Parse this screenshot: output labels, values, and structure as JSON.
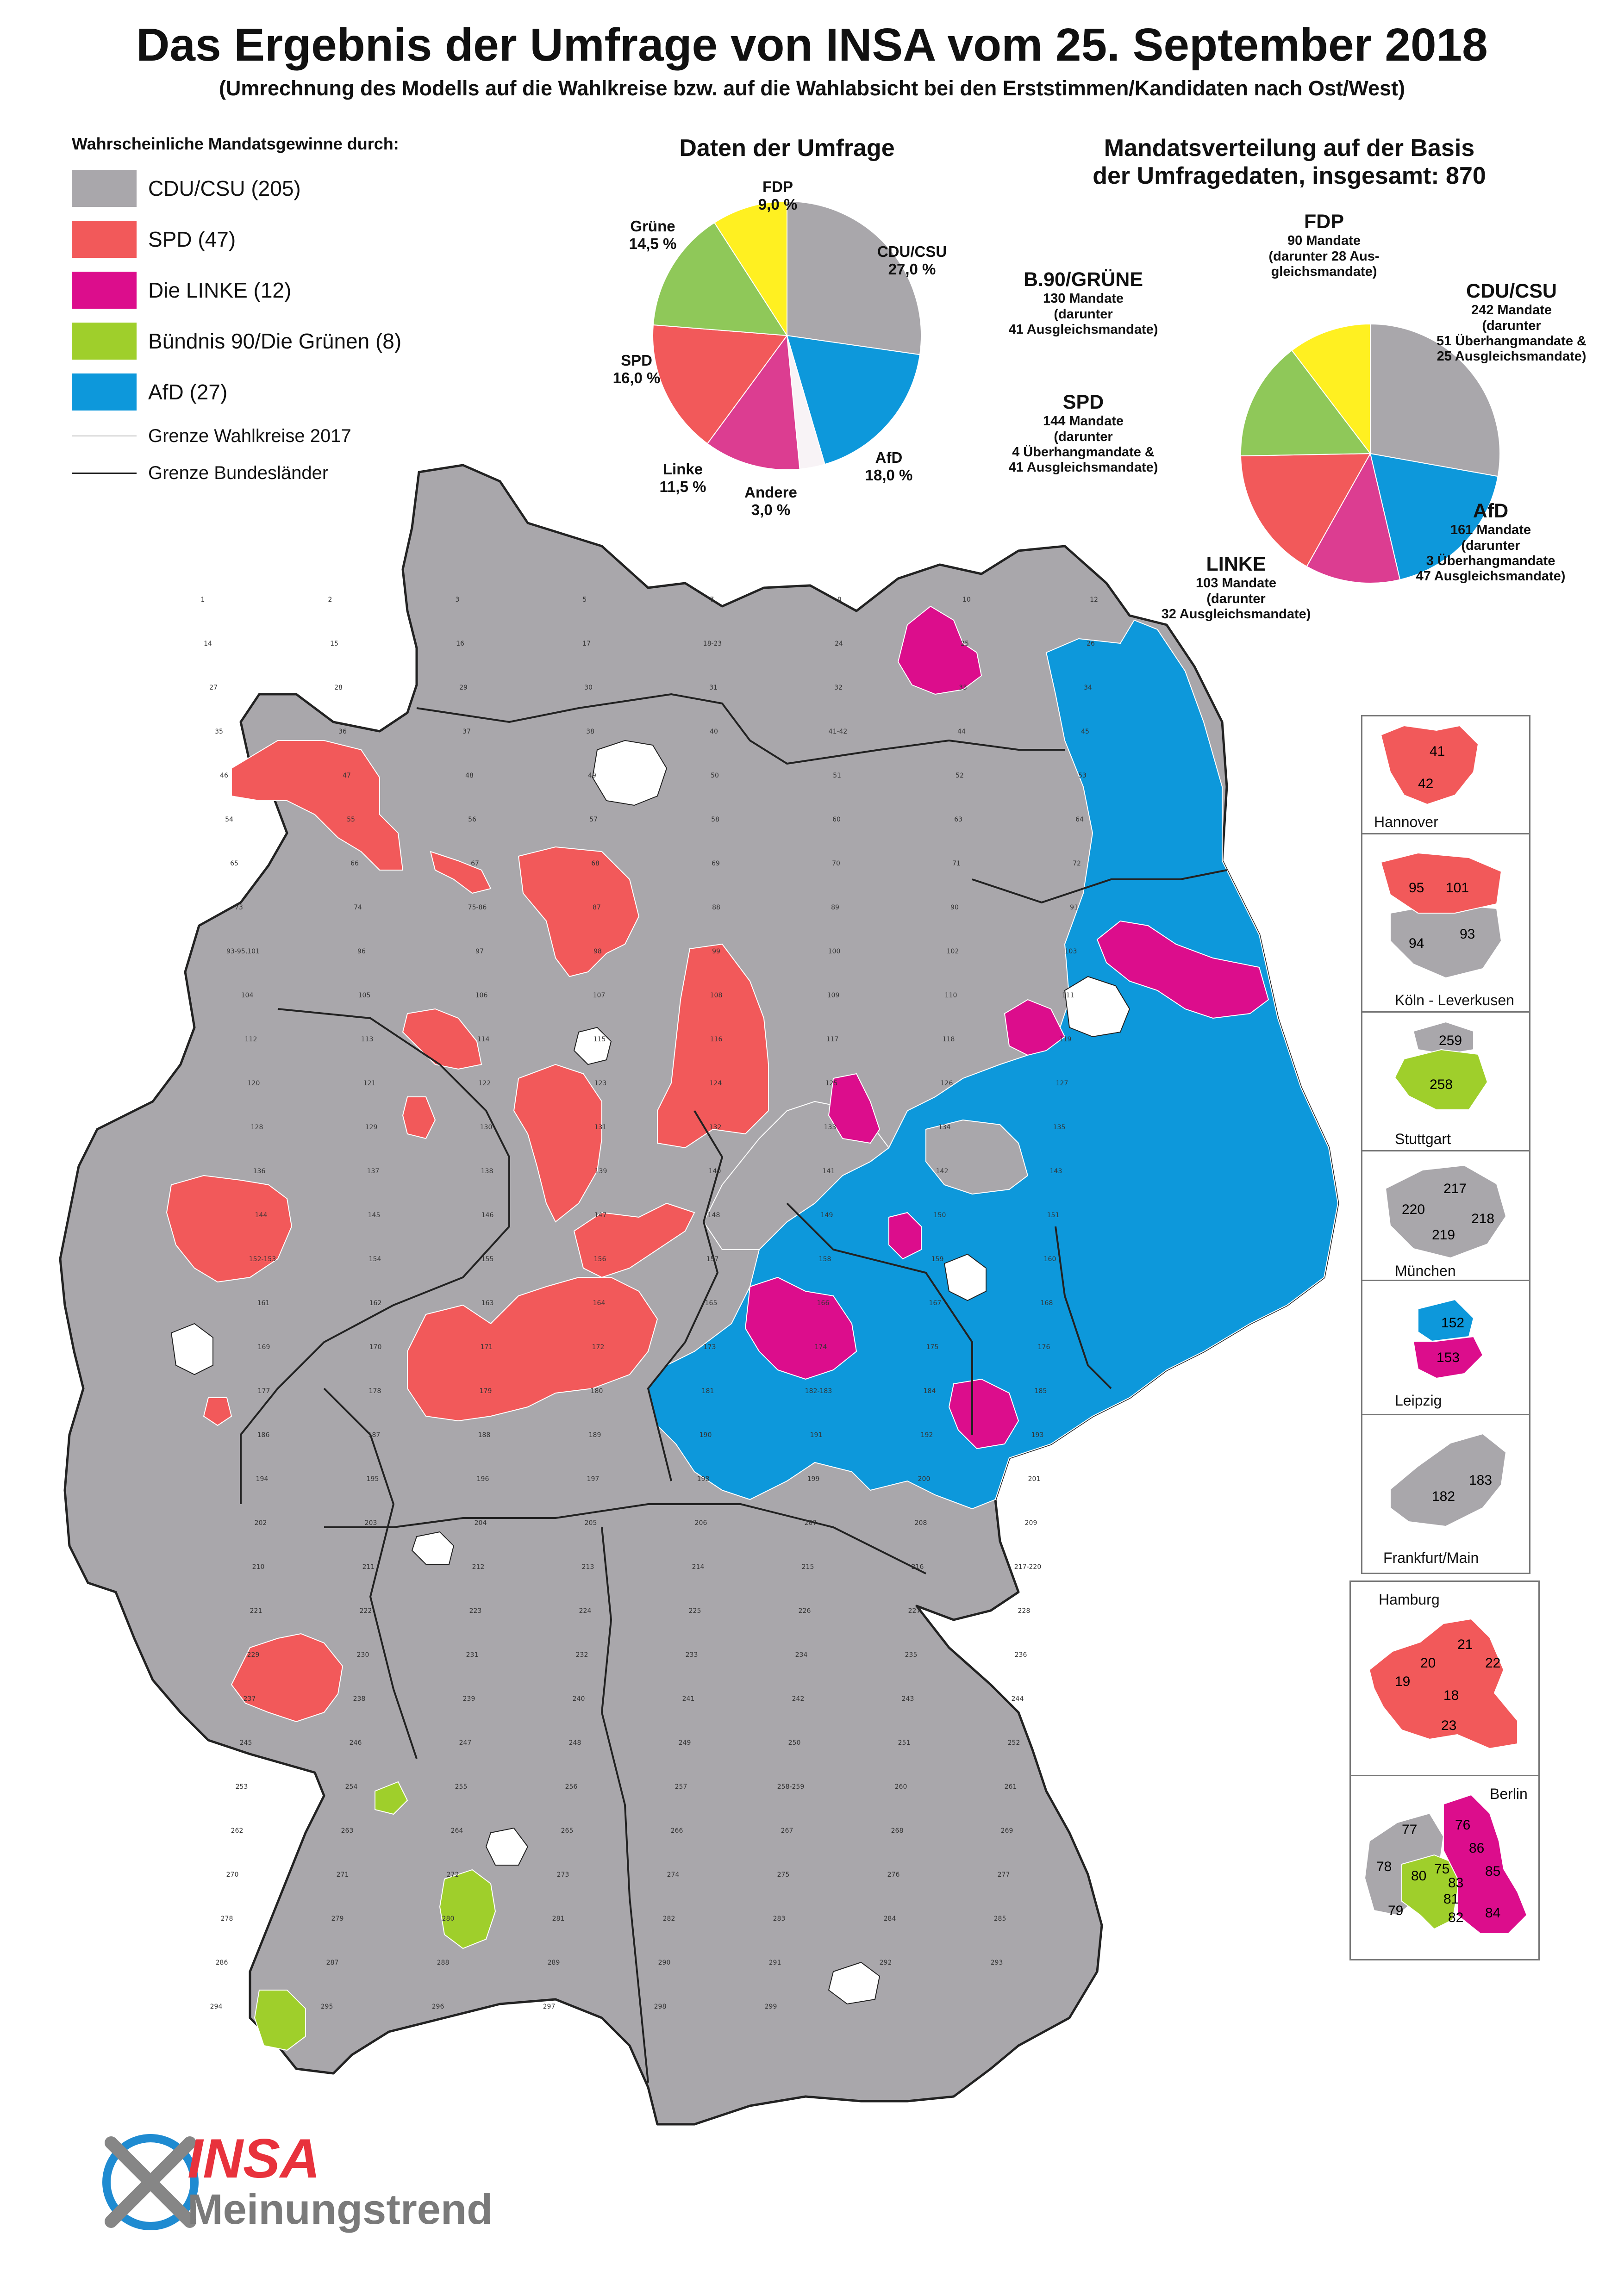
{
  "title": "Das Ergebnis der Umfrage von INSA vom 25. September 2018",
  "subtitle": "(Umrechnung des Modells auf die Wahlkreise bzw. auf die Wahlabsicht bei den Erststimmen/Kandidaten nach Ost/West)",
  "colors": {
    "cdu": "#a9a7ab",
    "spd": "#f2595a",
    "linke": "#dc0d8c",
    "gruene_legend": "#9fcf2b",
    "gruene_pie": "#8fc859",
    "afd": "#0d98db",
    "fdp": "#fff021",
    "andere": "#f8f3f6",
    "border": "#222222",
    "wk_border": "#ffffff"
  },
  "legend": {
    "heading": "Wahrscheinliche Mandatsgewinne durch:",
    "items": [
      "CDU/CSU (205)",
      "SPD (47)",
      "Die LINKE (12)",
      "Bündnis 90/Die Grünen (8)",
      "AfD (27)"
    ],
    "lines": [
      "Grenze Wahlkreise 2017",
      "Grenze Bundesländer"
    ]
  },
  "chart_data": [
    {
      "type": "pie",
      "title": "Daten der Umfrage",
      "slices": [
        {
          "name": "CDU/CSU",
          "value": 27.0,
          "label": "27,0 %"
        },
        {
          "name": "AfD",
          "value": 18.0,
          "label": "18,0 %"
        },
        {
          "name": "Andere",
          "value": 3.0,
          "label": "3,0 %"
        },
        {
          "name": "Linke",
          "value": 11.5,
          "label": "11,5 %"
        },
        {
          "name": "SPD",
          "value": 16.0,
          "label": "16,0 %"
        },
        {
          "name": "Grüne",
          "value": 14.5,
          "label": "14,5 %"
        },
        {
          "name": "FDP",
          "value": 9.0,
          "label": "9,0 %"
        }
      ]
    },
    {
      "type": "pie",
      "title": "Mandatsverteilung auf der Basis der Umfragedaten, insgesamt: 870",
      "title_lines": [
        "Mandatsverteilung auf der Basis",
        "der Umfragedaten, insgesamt: 870"
      ],
      "slices": [
        {
          "name": "CDU/CSU",
          "value": 242,
          "lines": [
            "242 Mandate",
            "(darunter",
            "51 Überhangmandate &",
            "25 Ausgleichsmandate)"
          ]
        },
        {
          "name": "AfD",
          "value": 161,
          "lines": [
            "161 Mandate",
            "(darunter",
            "3 Überhangmandate",
            "47 Ausgleichsmandate)"
          ]
        },
        {
          "name": "LINKE",
          "value": 103,
          "lines": [
            "103 Mandate",
            "(darunter",
            "32 Ausgleichsmandate)"
          ]
        },
        {
          "name": "SPD",
          "value": 144,
          "lines": [
            "144 Mandate",
            "(darunter",
            "4 Überhangmandate &",
            "41 Ausgleichsmandate)"
          ]
        },
        {
          "name": "B.90/GRÜNE",
          "value": 130,
          "lines": [
            "130 Mandate",
            "(darunter",
            "41 Ausgleichsmandate)"
          ]
        },
        {
          "name": "FDP",
          "value": 90,
          "lines": [
            "90 Mandate",
            "(darunter 28 Aus-",
            "gleichsmandate)"
          ]
        }
      ]
    }
  ],
  "map_labels": [
    "1",
    "2",
    "3",
    "5",
    "7",
    "8",
    "10",
    "12",
    "14",
    "15",
    "16",
    "17",
    "18-23",
    "24",
    "25",
    "26",
    "27",
    "28",
    "29",
    "30",
    "31",
    "32",
    "33",
    "34",
    "35",
    "36",
    "37",
    "38",
    "40",
    "41-42",
    "44",
    "45",
    "46",
    "47",
    "48",
    "49",
    "50",
    "51",
    "52",
    "53",
    "54",
    "55",
    "56",
    "57",
    "58",
    "60",
    "63",
    "64",
    "65",
    "66",
    "67",
    "68",
    "69",
    "70",
    "71",
    "72",
    "73",
    "74",
    "75-86",
    "87",
    "88",
    "89",
    "90",
    "91",
    "93-95,101",
    "96",
    "97",
    "98",
    "99",
    "100",
    "102",
    "103",
    "104",
    "105",
    "106",
    "107",
    "108",
    "109",
    "110",
    "111",
    "112",
    "113",
    "114",
    "115",
    "116",
    "117",
    "118",
    "119",
    "120",
    "121",
    "122",
    "123",
    "124",
    "125",
    "126",
    "127",
    "128",
    "129",
    "130",
    "131",
    "132",
    "133",
    "134",
    "135",
    "136",
    "137",
    "138",
    "139",
    "140",
    "141",
    "142",
    "143",
    "144",
    "145",
    "146",
    "147",
    "148",
    "149",
    "150",
    "151",
    "152-153",
    "154",
    "155",
    "156",
    "157",
    "158",
    "159",
    "160",
    "161",
    "162",
    "163",
    "164",
    "165",
    "166",
    "167",
    "168",
    "169",
    "170",
    "171",
    "172",
    "173",
    "174",
    "175",
    "176",
    "177",
    "178",
    "179",
    "180",
    "181",
    "182-183",
    "184",
    "185",
    "186",
    "187",
    "188",
    "189",
    "190",
    "191",
    "192",
    "193",
    "194",
    "195",
    "196",
    "197",
    "198",
    "199",
    "200",
    "201",
    "202",
    "203",
    "204",
    "205",
    "206",
    "207",
    "208",
    "209",
    "210",
    "211",
    "212",
    "213",
    "214",
    "215",
    "216",
    "217-220",
    "221",
    "222",
    "223",
    "224",
    "225",
    "226",
    "227",
    "228",
    "229",
    "230",
    "231",
    "232",
    "233",
    "234",
    "235",
    "236",
    "237",
    "238",
    "239",
    "240",
    "241",
    "242",
    "243",
    "244",
    "245",
    "246",
    "247",
    "248",
    "249",
    "250",
    "251",
    "252",
    "253",
    "254",
    "255",
    "256",
    "257",
    "258-259",
    "260",
    "261",
    "262",
    "263",
    "264",
    "265",
    "266",
    "267",
    "268",
    "269",
    "270",
    "271",
    "272",
    "273",
    "274",
    "275",
    "276",
    "277",
    "278",
    "279",
    "280",
    "281",
    "282",
    "283",
    "284",
    "285",
    "286",
    "287",
    "288",
    "289",
    "290",
    "291",
    "292",
    "293",
    "294",
    "295",
    "296",
    "297",
    "298",
    "299"
  ],
  "insets": [
    {
      "name": "Hannover",
      "labels": [
        "41",
        "42"
      ]
    },
    {
      "name": "Köln -  Leverkusen",
      "labels": [
        "95",
        "101",
        "94",
        "93"
      ]
    },
    {
      "name": "Stuttgart",
      "labels": [
        "259",
        "258"
      ]
    },
    {
      "name": "München",
      "labels": [
        "217",
        "220",
        "218",
        "219"
      ]
    },
    {
      "name": "Leipzig",
      "labels": [
        "152",
        "153"
      ]
    },
    {
      "name": "Frankfurt/Main",
      "labels": [
        "182",
        "183"
      ]
    },
    {
      "name": "Hamburg",
      "labels": [
        "20",
        "21",
        "22",
        "19",
        "18",
        "23"
      ]
    },
    {
      "name": "Berlin",
      "labels": [
        "76",
        "77",
        "86",
        "78",
        "85",
        "80",
        "75",
        "83",
        "81",
        "79",
        "82",
        "84"
      ]
    }
  ],
  "logo": {
    "brand": "INSA",
    "tagline": "Meinungstrend"
  }
}
